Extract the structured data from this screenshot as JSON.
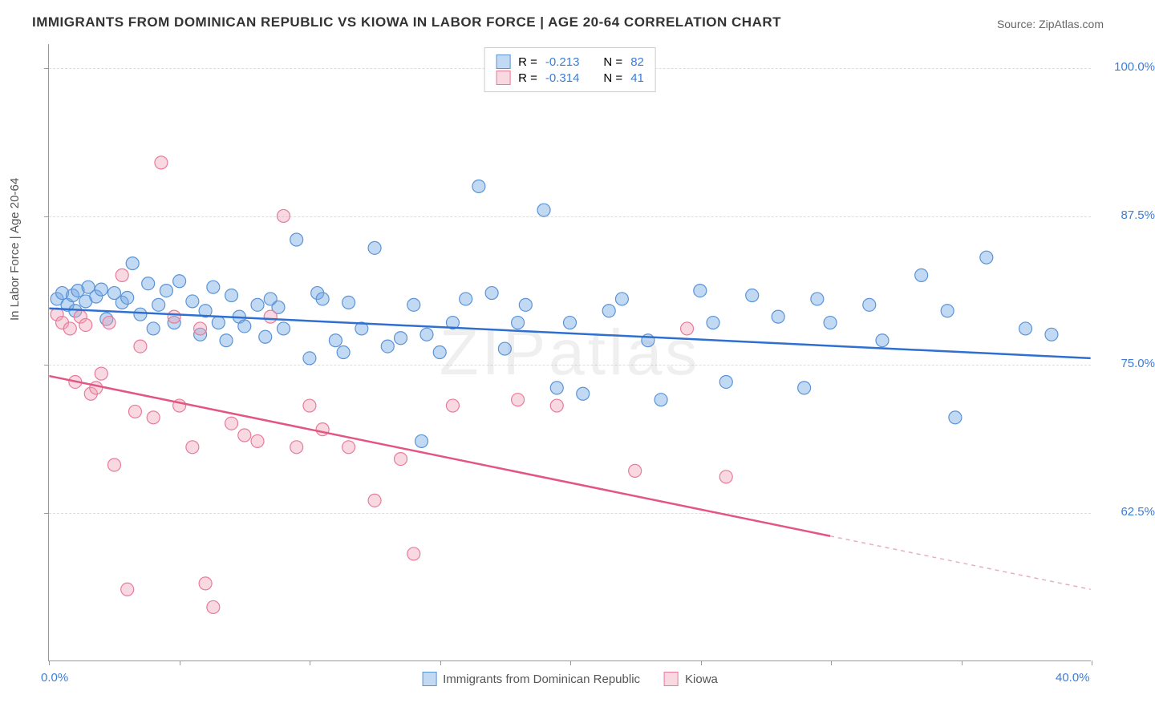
{
  "title": "IMMIGRANTS FROM DOMINICAN REPUBLIC VS KIOWA IN LABOR FORCE | AGE 20-64 CORRELATION CHART",
  "source_label": "Source: ZipAtlas.com",
  "y_axis_label": "In Labor Force | Age 20-64",
  "watermark": "ZIPatlas",
  "chart": {
    "type": "scatter",
    "background_color": "#ffffff",
    "grid_color": "#dddddd",
    "axis_color": "#999999",
    "tick_label_color": "#3b7dd8",
    "xlim": [
      0.0,
      40.0
    ],
    "ylim": [
      50.0,
      102.0
    ],
    "x_ticks": [
      0,
      5,
      10,
      15,
      20,
      25,
      30,
      35,
      40
    ],
    "x_tick_labels": {
      "0": "0.0%",
      "40": "40.0%"
    },
    "y_gridlines": [
      62.5,
      75.0,
      87.5,
      100.0
    ],
    "y_tick_labels": [
      "62.5%",
      "75.0%",
      "87.5%",
      "100.0%"
    ],
    "marker_radius": 8,
    "marker_stroke_width": 1.2,
    "line_width": 2.5
  },
  "legend_top": {
    "rows": [
      {
        "r_label": "R =",
        "r_val": "-0.213",
        "n_label": "N =",
        "n_val": "82"
      },
      {
        "r_label": "R =",
        "r_val": "-0.314",
        "n_label": "N =",
        "n_val": "41"
      }
    ]
  },
  "series": [
    {
      "name": "Immigrants from Dominican Republic",
      "fill_color": "rgba(120,170,230,0.45)",
      "stroke_color": "#5a93d6",
      "line_color": "#2f6fd0",
      "trend": {
        "x1": 0,
        "y1": 79.7,
        "x2": 40,
        "y2": 75.5,
        "solid_until": 40
      },
      "points": [
        [
          0.3,
          80.5
        ],
        [
          0.5,
          81
        ],
        [
          0.7,
          80
        ],
        [
          0.9,
          80.8
        ],
        [
          1.0,
          79.5
        ],
        [
          1.1,
          81.2
        ],
        [
          1.4,
          80.3
        ],
        [
          1.5,
          81.5
        ],
        [
          1.8,
          80.7
        ],
        [
          2.0,
          81.3
        ],
        [
          2.2,
          78.8
        ],
        [
          2.5,
          81.0
        ],
        [
          2.8,
          80.2
        ],
        [
          3.0,
          80.6
        ],
        [
          3.2,
          83.5
        ],
        [
          3.5,
          79.2
        ],
        [
          3.8,
          81.8
        ],
        [
          4.0,
          78.0
        ],
        [
          4.2,
          80.0
        ],
        [
          4.5,
          81.2
        ],
        [
          4.8,
          78.5
        ],
        [
          5.0,
          82.0
        ],
        [
          5.5,
          80.3
        ],
        [
          5.8,
          77.5
        ],
        [
          6.0,
          79.5
        ],
        [
          6.3,
          81.5
        ],
        [
          6.5,
          78.5
        ],
        [
          6.8,
          77.0
        ],
        [
          7.0,
          80.8
        ],
        [
          7.3,
          79.0
        ],
        [
          7.5,
          78.2
        ],
        [
          8.0,
          80.0
        ],
        [
          8.3,
          77.3
        ],
        [
          8.5,
          80.5
        ],
        [
          8.8,
          79.8
        ],
        [
          9.0,
          78.0
        ],
        [
          9.5,
          85.5
        ],
        [
          10.0,
          75.5
        ],
        [
          10.3,
          81.0
        ],
        [
          10.5,
          80.5
        ],
        [
          11.0,
          77.0
        ],
        [
          11.3,
          76.0
        ],
        [
          11.5,
          80.2
        ],
        [
          12.0,
          78.0
        ],
        [
          12.5,
          84.8
        ],
        [
          13.0,
          76.5
        ],
        [
          13.5,
          77.2
        ],
        [
          14.0,
          80.0
        ],
        [
          14.3,
          68.5
        ],
        [
          14.5,
          77.5
        ],
        [
          15.0,
          76.0
        ],
        [
          15.5,
          78.5
        ],
        [
          16.0,
          80.5
        ],
        [
          16.5,
          90.0
        ],
        [
          17.0,
          81.0
        ],
        [
          17.5,
          76.3
        ],
        [
          18.0,
          78.5
        ],
        [
          18.3,
          80.0
        ],
        [
          19.0,
          88.0
        ],
        [
          19.5,
          73.0
        ],
        [
          20.0,
          78.5
        ],
        [
          20.5,
          72.5
        ],
        [
          21.5,
          79.5
        ],
        [
          22.0,
          80.5
        ],
        [
          23.0,
          77.0
        ],
        [
          23.5,
          72.0
        ],
        [
          25.0,
          81.2
        ],
        [
          25.5,
          78.5
        ],
        [
          26.0,
          73.5
        ],
        [
          27.0,
          80.8
        ],
        [
          28.0,
          79.0
        ],
        [
          29.0,
          73.0
        ],
        [
          29.5,
          80.5
        ],
        [
          30.0,
          78.5
        ],
        [
          31.5,
          80.0
        ],
        [
          32.0,
          77.0
        ],
        [
          33.5,
          82.5
        ],
        [
          34.5,
          79.5
        ],
        [
          34.8,
          70.5
        ],
        [
          36.0,
          84.0
        ],
        [
          37.5,
          78.0
        ],
        [
          38.5,
          77.5
        ]
      ]
    },
    {
      "name": "Kiowa",
      "fill_color": "rgba(240,160,180,0.40)",
      "stroke_color": "#e97a9a",
      "line_color": "#e25584",
      "trend": {
        "x1": 0,
        "y1": 74.0,
        "x2": 40,
        "y2": 56.0,
        "solid_until": 30
      },
      "points": [
        [
          0.3,
          79.2
        ],
        [
          0.5,
          78.5
        ],
        [
          0.8,
          78.0
        ],
        [
          1.0,
          73.5
        ],
        [
          1.2,
          79.0
        ],
        [
          1.4,
          78.3
        ],
        [
          1.6,
          72.5
        ],
        [
          1.8,
          73.0
        ],
        [
          2.0,
          74.2
        ],
        [
          2.3,
          78.5
        ],
        [
          2.5,
          66.5
        ],
        [
          2.8,
          82.5
        ],
        [
          3.0,
          56.0
        ],
        [
          3.3,
          71.0
        ],
        [
          3.5,
          76.5
        ],
        [
          4.0,
          70.5
        ],
        [
          4.3,
          92.0
        ],
        [
          4.8,
          79.0
        ],
        [
          5.0,
          71.5
        ],
        [
          5.5,
          68.0
        ],
        [
          5.8,
          78.0
        ],
        [
          6.0,
          56.5
        ],
        [
          6.3,
          54.5
        ],
        [
          7.0,
          70.0
        ],
        [
          7.5,
          69.0
        ],
        [
          8.0,
          68.5
        ],
        [
          8.5,
          79.0
        ],
        [
          9.0,
          87.5
        ],
        [
          9.5,
          68.0
        ],
        [
          10.0,
          71.5
        ],
        [
          10.5,
          69.5
        ],
        [
          11.5,
          68.0
        ],
        [
          12.5,
          63.5
        ],
        [
          13.5,
          67.0
        ],
        [
          14.0,
          59.0
        ],
        [
          15.5,
          71.5
        ],
        [
          18.0,
          72.0
        ],
        [
          19.5,
          71.5
        ],
        [
          22.5,
          66.0
        ],
        [
          26.0,
          65.5
        ],
        [
          24.5,
          78.0
        ]
      ]
    }
  ],
  "legend_bottom": {
    "label1": "Immigrants from Dominican Republic",
    "label2": "Kiowa"
  }
}
